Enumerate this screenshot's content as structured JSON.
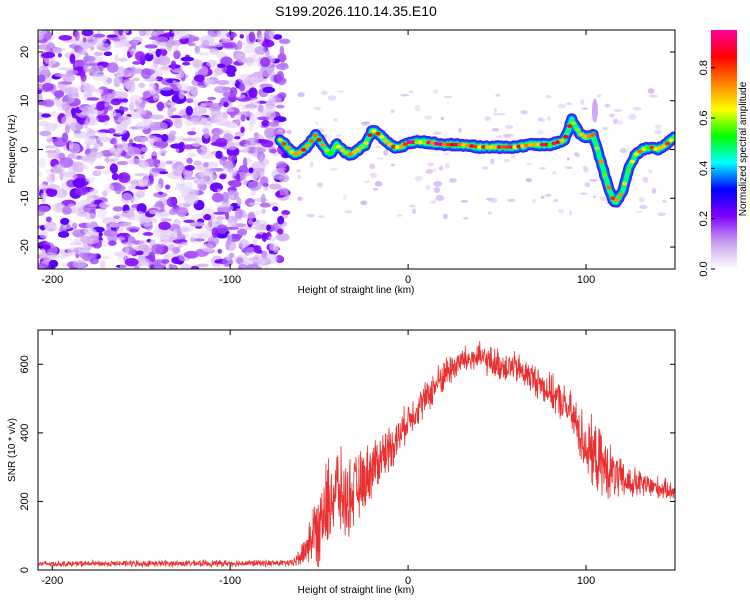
{
  "title": "S199.2026.110.14.35.E10",
  "chart_data": [
    {
      "type": "heatmap",
      "name": "spectrogram",
      "xlabel": "Height of straight line (km)",
      "ylabel": "Frequency (Hz)",
      "xlim": [
        -208,
        150
      ],
      "ylim": [
        -24.5,
        24.5
      ],
      "xticks": [
        -200,
        -100,
        0,
        100
      ],
      "yticks": [
        20,
        10,
        0,
        -10,
        -20
      ],
      "noise_region_x": [
        -208,
        -72
      ],
      "ridge": {
        "x": [
          -72,
          -68,
          -64,
          -60,
          -56,
          -52,
          -48,
          -44,
          -40,
          -36,
          -32,
          -28,
          -24,
          -20,
          -16,
          -12,
          -8,
          -4,
          0,
          10,
          20,
          30,
          40,
          50,
          60,
          70,
          80,
          88,
          92,
          96,
          100,
          104,
          108,
          112,
          116,
          120,
          124,
          128,
          132,
          136,
          140,
          145,
          150
        ],
        "freq": [
          2,
          0.5,
          -1,
          -0.5,
          1,
          3,
          1,
          -1,
          1,
          -0.5,
          -1,
          0,
          1,
          4,
          3,
          1.5,
          0.5,
          0.5,
          1.5,
          1.5,
          1,
          1,
          0.5,
          0.5,
          0.5,
          1,
          1,
          2,
          6,
          3.5,
          2.5,
          3,
          -2,
          -7,
          -11,
          -9,
          -4,
          -1,
          0,
          0.5,
          0,
          1,
          2.5
        ]
      },
      "colorbar": {
        "label": "Normalized spectral amplitude",
        "ticks": [
          0.0,
          0.2,
          0.4,
          0.6,
          0.8
        ],
        "tick_labels": [
          "0.0",
          "0.2",
          "0.4",
          "0.6",
          "0.8"
        ],
        "range": [
          0,
          0.95
        ],
        "colors": [
          "#ffffff",
          "#c9a0f0",
          "#8000ff",
          "#0000ff",
          "#00ffff",
          "#00ff00",
          "#ffff00",
          "#ff8000",
          "#ff0000",
          "#ff00a0"
        ]
      }
    },
    {
      "type": "line",
      "name": "snr",
      "xlabel": "Height of straight line (km)",
      "ylabel": "SNR (10 * v/v)",
      "xlim": [
        -208,
        150
      ],
      "ylim": [
        0,
        700
      ],
      "xticks": [
        -200,
        -100,
        0,
        100
      ],
      "yticks": [
        0,
        200,
        400,
        600
      ],
      "line_color": "#e83030",
      "series": [
        {
          "name": "SNR",
          "envelope": {
            "x": [
              -208,
              -65,
              -60,
              -55,
              -50,
              -45,
              -40,
              -35,
              -30,
              -25,
              -20,
              -15,
              -10,
              -5,
              0,
              10,
              20,
              30,
              40,
              50,
              60,
              70,
              80,
              90,
              95,
              100,
              105,
              110,
              115,
              120,
              130,
              140,
              150
            ],
            "mean": [
              18,
              20,
              40,
              90,
              130,
              190,
              240,
              200,
              230,
              260,
              300,
              330,
              360,
              390,
              440,
              500,
              570,
              610,
              620,
              600,
              590,
              560,
              520,
              470,
              420,
              360,
              330,
              300,
              280,
              260,
              250,
              240,
              230
            ],
            "spread": [
              10,
              12,
              40,
              90,
              150,
              160,
              150,
              140,
              120,
              110,
              100,
              90,
              80,
              70,
              60,
              60,
              60,
              50,
              50,
              55,
              55,
              55,
              60,
              70,
              90,
              110,
              120,
              110,
              90,
              70,
              50,
              40,
              30
            ]
          }
        }
      ]
    }
  ]
}
